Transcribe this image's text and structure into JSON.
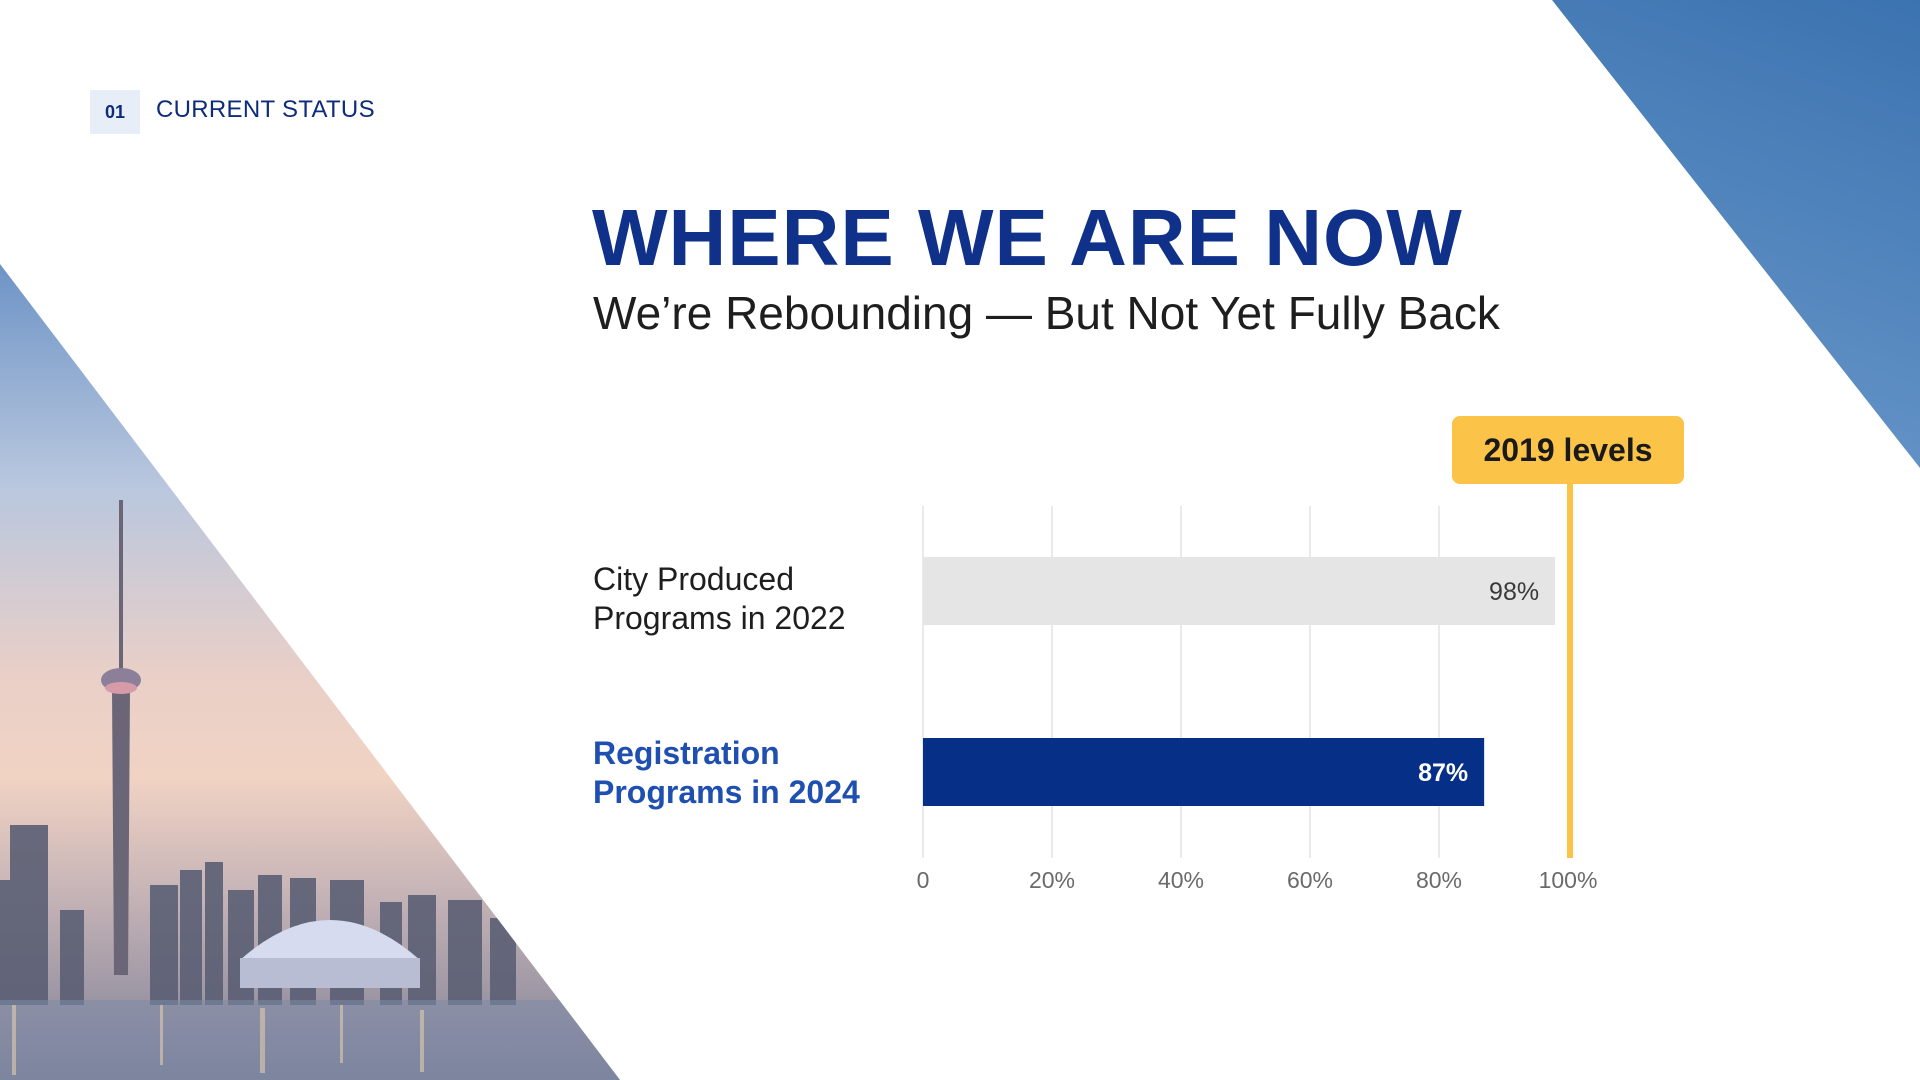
{
  "header": {
    "section_number": "01",
    "section_label": "CURRENT STATUS"
  },
  "title": "WHERE WE ARE NOW",
  "subtitle": "We’re Rebounding — But Not Yet Fully Back",
  "colors": {
    "title": "#0f3189",
    "bar_2022": "#e5e5e5",
    "bar_2024": "#062f87",
    "reference": "#fcc349",
    "highlight_label": "#1f4fb0"
  },
  "chart_data": {
    "type": "bar",
    "orientation": "horizontal",
    "categories": [
      "City Produced\nPrograms in 2022",
      "Registration\nPrograms in 2024"
    ],
    "values": [
      98,
      87
    ],
    "data_labels": [
      "98%",
      "87%"
    ],
    "xlim": [
      0,
      100
    ],
    "x_ticks": [
      "0",
      "20%",
      "40%",
      "60%",
      "80%",
      "100%"
    ],
    "grid": true,
    "reference_line": {
      "value": 100,
      "label": "2019 levels"
    }
  }
}
